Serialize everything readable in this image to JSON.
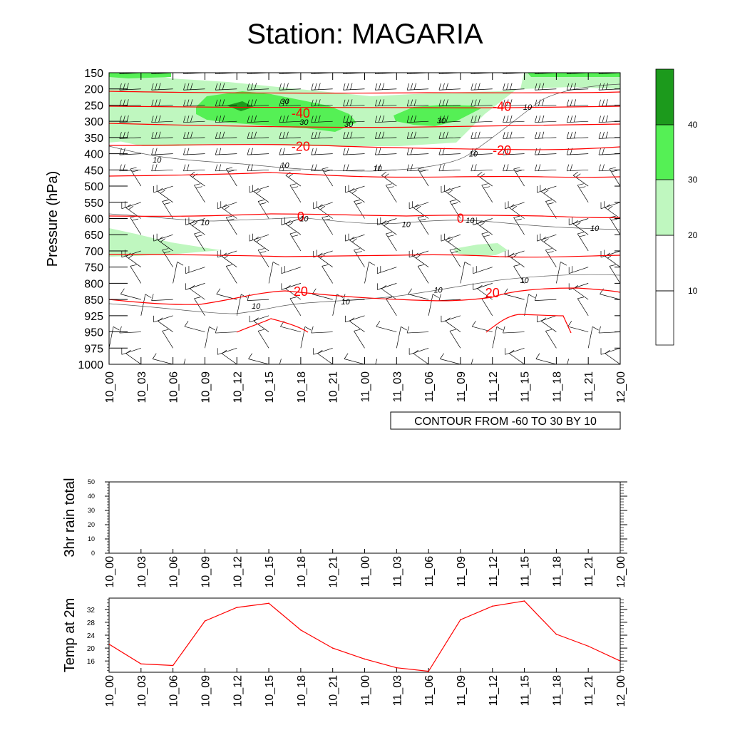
{
  "title": "Station: MAGARIA",
  "time_labels": [
    "10_00",
    "10_03",
    "10_06",
    "10_09",
    "10_12",
    "10_15",
    "10_18",
    "10_21",
    "11_00",
    "11_03",
    "11_06",
    "11_09",
    "11_12",
    "11_15",
    "11_18",
    "11_21",
    "12_00"
  ],
  "colors": {
    "temp_line": "#ff0000",
    "fill_light": "#bff7bf",
    "fill_mid": "#55f055",
    "fill_dark": "#1c9a1c",
    "rh_line": "#000000"
  },
  "chart_data": [
    {
      "type": "heatmap",
      "name": "upper-air cross section",
      "ylabel": "Pressure (hPa)",
      "pressure_levels": [
        150,
        200,
        250,
        300,
        350,
        400,
        450,
        500,
        550,
        600,
        650,
        700,
        750,
        800,
        850,
        925,
        950,
        975,
        1000
      ],
      "ylim": [
        1000,
        150
      ],
      "contour_info": "CONTOUR FROM -60 TO 30 BY 10",
      "colorbar_labels": [
        "10",
        "20",
        "30",
        "40"
      ],
      "temperature_contour_labels": [
        {
          "t": 6,
          "p": 275,
          "text": "-40"
        },
        {
          "t": 12.3,
          "p": 255,
          "text": "-40"
        },
        {
          "t": 6,
          "p": 378,
          "text": "-20"
        },
        {
          "t": 12.3,
          "p": 390,
          "text": "-20"
        },
        {
          "t": 6,
          "p": 595,
          "text": "0"
        },
        {
          "t": 11,
          "p": 600,
          "text": "0"
        },
        {
          "t": 6,
          "p": 825,
          "text": "20"
        },
        {
          "t": 12,
          "p": 830,
          "text": "20"
        }
      ],
      "humidity_contour_labels": [
        {
          "t": 5.5,
          "p": 238,
          "text": "30"
        },
        {
          "t": 6.1,
          "p": 302,
          "text": "30"
        },
        {
          "t": 7.5,
          "p": 308,
          "text": "30"
        },
        {
          "t": 10.4,
          "p": 297,
          "text": "30"
        },
        {
          "t": 1.5,
          "p": 418,
          "text": "10"
        },
        {
          "t": 5.5,
          "p": 435,
          "text": "10"
        },
        {
          "t": 8.4,
          "p": 445,
          "text": "10"
        },
        {
          "t": 11.4,
          "p": 400,
          "text": "10"
        },
        {
          "t": 13.1,
          "p": 256,
          "text": "10"
        },
        {
          "t": 3.0,
          "p": 612,
          "text": "10"
        },
        {
          "t": 6.1,
          "p": 600,
          "text": "10"
        },
        {
          "t": 9.3,
          "p": 618,
          "text": "10"
        },
        {
          "t": 11.3,
          "p": 605,
          "text": "10"
        },
        {
          "t": 15.2,
          "p": 630,
          "text": "10"
        },
        {
          "t": 4.6,
          "p": 880,
          "text": "10"
        },
        {
          "t": 7.4,
          "p": 860,
          "text": "10"
        },
        {
          "t": 10.3,
          "p": 820,
          "text": "10"
        },
        {
          "t": 13.0,
          "p": 790,
          "text": "10"
        }
      ]
    },
    {
      "type": "bar",
      "name": "3hr rain total",
      "ylabel": "3hr rain total",
      "ylim": [
        0,
        50
      ],
      "yticks": [
        "0",
        "10",
        "20",
        "30",
        "40",
        "50"
      ],
      "values": [
        0,
        0,
        0,
        0,
        0,
        0,
        0,
        0,
        0,
        0,
        0,
        0,
        0,
        0,
        0,
        0,
        0
      ]
    },
    {
      "type": "line",
      "name": "Temp at 2m",
      "ylabel": "Temp at 2m",
      "ylim": [
        12.5,
        35.5
      ],
      "yticks": [
        "16",
        "20",
        "24",
        "28",
        "32"
      ],
      "values": [
        21.2,
        15.1,
        14.6,
        28.4,
        32.6,
        33.9,
        25.6,
        20.0,
        16.6,
        13.9,
        12.8,
        28.8,
        33.0,
        34.6,
        24.3,
        20.6,
        16.0
      ]
    }
  ]
}
